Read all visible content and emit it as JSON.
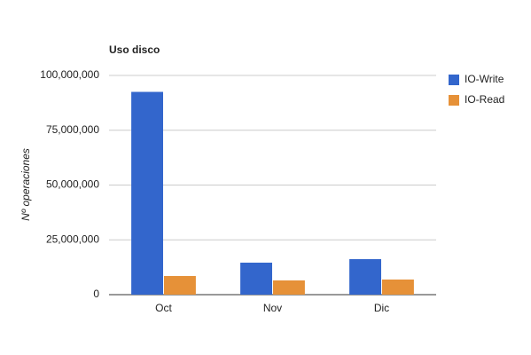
{
  "chart_data": {
    "type": "bar",
    "title": "Uso disco",
    "y_label": "Nº operaciones",
    "categories": [
      "Oct",
      "Nov",
      "Dic"
    ],
    "series": [
      {
        "name": "IO-Write",
        "color": "#3366cc",
        "values": [
          92500000,
          14600000,
          16200000
        ]
      },
      {
        "name": "IO-Read",
        "color": "#e69138",
        "values": [
          8500000,
          6500000,
          6900000
        ]
      }
    ],
    "ylim": [
      0,
      100000000
    ],
    "yticks": [
      0,
      {
        "value": 25000000,
        "label": "25,000,000"
      },
      {
        "value": 50000000,
        "label": "50,000,000"
      },
      {
        "value": 75000000,
        "label": "75,000,000"
      },
      {
        "value": 100000000,
        "label": "100,000,000"
      }
    ],
    "grid": true,
    "legend": "right"
  }
}
